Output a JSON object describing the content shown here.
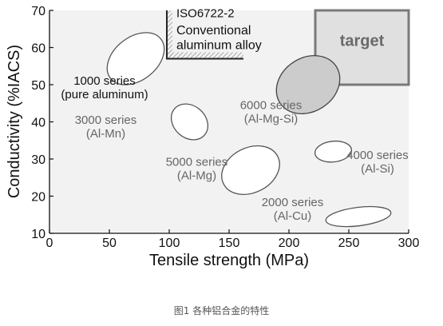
{
  "chart_data": {
    "type": "scatter",
    "title": "",
    "xlabel": "Tensile strength (MPa)",
    "ylabel": "Conductivity (%IACS)",
    "xlim": [
      0,
      300
    ],
    "ylim": [
      10,
      70
    ],
    "xticks": [
      0,
      50,
      100,
      150,
      200,
      250,
      300
    ],
    "yticks": [
      10,
      20,
      30,
      40,
      50,
      60,
      70
    ],
    "grid": false,
    "regions": [
      {
        "name": "1000 series (pure aluminum)",
        "label_lines": [
          "1000 series",
          "(pure aluminum)"
        ],
        "kind": "ellipse",
        "center": [
          72,
          57
        ],
        "rx": 40,
        "ry": 5.2,
        "angle": -38,
        "fill": "#ffffff",
        "stroke": "#555555",
        "label_at": [
          46,
          50
        ],
        "label_color": "#111111"
      },
      {
        "name": "3000 series (Al-Mn)",
        "label_lines": [
          "3000 series",
          "(Al-Mn)"
        ],
        "kind": "ellipse",
        "center": [
          117,
          40
        ],
        "rx": 20,
        "ry": 5,
        "angle": -48,
        "fill": "#ffffff",
        "stroke": "#555555",
        "label_at": [
          47,
          39.5
        ],
        "label_color": "#666666"
      },
      {
        "name": "5000 series (Al-Mg)",
        "label_lines": [
          "5000 series",
          "(Al-Mg)"
        ],
        "kind": "ellipse",
        "center": [
          168,
          27
        ],
        "rx": 38,
        "ry": 5.3,
        "angle": -27,
        "fill": "#ffffff",
        "stroke": "#555555",
        "label_at": [
          123,
          28.2
        ],
        "label_color": "#666666"
      },
      {
        "name": "4000 series (Al-Si)",
        "label_lines": [
          "4000 series",
          "(Al-Si)"
        ],
        "kind": "ellipse",
        "center": [
          237,
          32
        ],
        "rx": 23,
        "ry": 3.6,
        "angle": -6,
        "fill": "#ffffff",
        "stroke": "#555555",
        "label_at": [
          274,
          30
        ],
        "label_color": "#666666"
      },
      {
        "name": "2000 series (Al-Cu)",
        "label_lines": [
          "2000 series",
          "(Al-Cu)"
        ],
        "kind": "ellipse",
        "center": [
          258,
          14.5
        ],
        "rx": 41,
        "ry": 3.4,
        "angle": -7,
        "fill": "#ffffff",
        "stroke": "#555555",
        "label_at": [
          203,
          17.3
        ],
        "label_color": "#666666"
      },
      {
        "name": "6000 series (Al-Mg-Si)",
        "label_lines": [
          "6000 series",
          "(Al-Mg-Si)"
        ],
        "kind": "ellipse",
        "center": [
          216,
          50
        ],
        "rx": 42,
        "ry": 5.8,
        "angle": -33,
        "fill": "#cccccc",
        "stroke": "#444444",
        "label_at": [
          185,
          43.4
        ],
        "label_color": "#666666"
      }
    ],
    "target": {
      "label": "target",
      "x_from": 222,
      "x_to": 300,
      "y_from": 50,
      "y_to": 70,
      "fill": "#e0e0e0",
      "stroke": "#7a7a7a"
    },
    "iso_standard": {
      "label_lines": [
        "ISO6722-2",
        "Conventional",
        "aluminum alloy"
      ],
      "x_from": 98,
      "x_to": 162,
      "y_from": 57,
      "y_to": 70
    }
  },
  "caption": "图1 各种铝合金的特性"
}
